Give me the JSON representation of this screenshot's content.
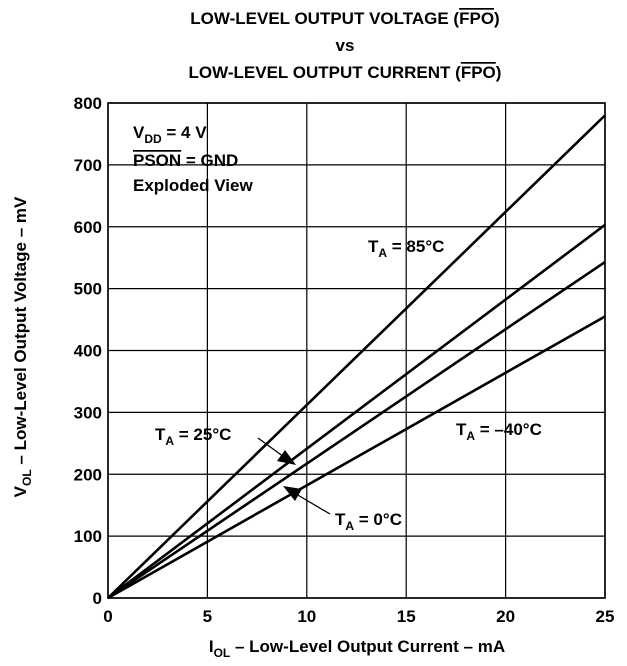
{
  "chart_data": {
    "type": "line",
    "title": {
      "line1_prefix": "LOW-LEVEL OUTPUT VOLTAGE (",
      "line1_overline": "FPO",
      "line1_suffix": ")",
      "line2": "vs",
      "line3_prefix": "LOW-LEVEL OUTPUT CURRENT (",
      "line3_overline": "FPO",
      "line3_suffix": ")"
    },
    "xlabel": {
      "prefix": "I",
      "sub": "OL",
      "rest": " – Low-Level Output Current – mA"
    },
    "ylabel": {
      "prefix": "V",
      "sub": "OL",
      "rest": " – Low-Level Output Voltage – mV"
    },
    "xlim": [
      0,
      25
    ],
    "ylim": [
      0,
      800
    ],
    "xticks": [
      0,
      5,
      10,
      15,
      20,
      25
    ],
    "yticks": [
      0,
      100,
      200,
      300,
      400,
      500,
      600,
      700,
      800
    ],
    "grid": true,
    "conditions": {
      "vdd_prefix": "V",
      "vdd_sub": "DD",
      "vdd_rest": " = 4 V",
      "pson_overline": "PSON",
      "pson_rest": " = GND",
      "view": "Exploded View"
    },
    "series": [
      {
        "name": "85°C",
        "x": [
          0,
          25
        ],
        "y": [
          0,
          780
        ]
      },
      {
        "name": "25°C",
        "x": [
          0,
          25
        ],
        "y": [
          0,
          603
        ]
      },
      {
        "name": "0°C",
        "x": [
          0,
          25
        ],
        "y": [
          0,
          543
        ]
      },
      {
        "name": "–40°C",
        "x": [
          0,
          25
        ],
        "y": [
          0,
          455
        ]
      }
    ],
    "annotations": [
      {
        "prefix": "T",
        "sub": "A",
        "rest": " = 85°C",
        "series": "85°C"
      },
      {
        "prefix": "T",
        "sub": "A",
        "rest": " = 25°C",
        "series": "25°C"
      },
      {
        "prefix": "T",
        "sub": "A",
        "rest": " = 0°C",
        "series": "0°C"
      },
      {
        "prefix": "T",
        "sub": "A",
        "rest": " = –40°C",
        "series": "–40°C"
      }
    ]
  }
}
